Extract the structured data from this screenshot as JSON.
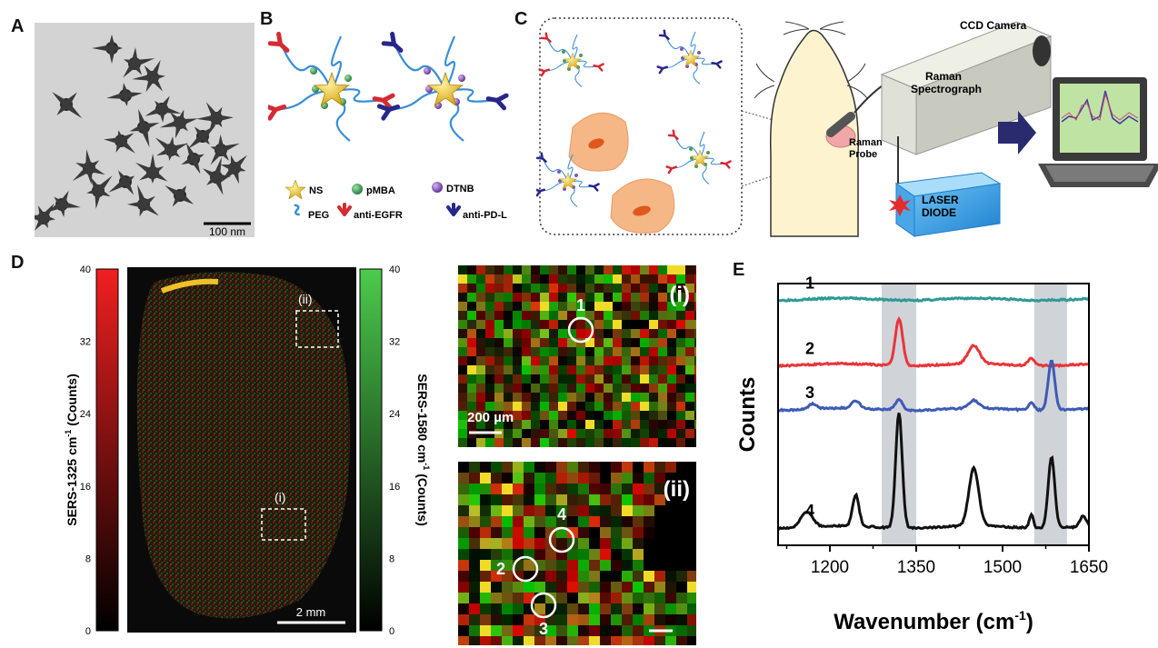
{
  "panels": {
    "A": {
      "letter": "A",
      "scalebar": "100 nm"
    },
    "B": {
      "letter": "B",
      "legend": [
        {
          "key": "ns",
          "label": "NS"
        },
        {
          "key": "pmba",
          "label": "pMBA"
        },
        {
          "key": "dtnb",
          "label": "DTNB"
        },
        {
          "key": "peg",
          "label": "PEG"
        },
        {
          "key": "egfr",
          "label": "anti-EGFR"
        },
        {
          "key": "pdl",
          "label": "anti-PD-L"
        }
      ]
    },
    "C": {
      "letter": "C",
      "labels": {
        "camera": "CCD Camera",
        "spectro_line1": "Raman",
        "spectro_line2": "Spectrograph",
        "probe_line1": "Raman",
        "probe_line2": "Probe",
        "laser_line1": "LASER",
        "laser_line2": "DIODE"
      }
    },
    "D": {
      "letter": "D",
      "left_bar_label_main": "SERS-1325 cm",
      "left_bar_label_sup": "-1",
      "left_bar_label_tail": " (Counts)",
      "right_bar_label_main": "SERS-1580 cm",
      "right_bar_label_sup": "-1",
      "right_bar_label_tail": " (Counts)",
      "ticks": [
        "0",
        "8",
        "16",
        "24",
        "32",
        "40"
      ],
      "roi_i": "(i)",
      "roi_ii": "(ii)",
      "scalebar": "2 mm",
      "inset_i": {
        "label": "(i)",
        "point": "1",
        "scalebar": "200 µm"
      },
      "inset_ii": {
        "label": "(ii)",
        "points": [
          "4",
          "2",
          "3"
        ]
      }
    },
    "E": {
      "letter": "E"
    }
  },
  "chart_data": {
    "type": "line",
    "title": "",
    "xlabel_main": "Wavenumber (cm",
    "xlabel_sup": "-1",
    "xlabel_tail": ")",
    "ylabel": "Counts",
    "xlim": [
      1110,
      1650
    ],
    "x_ticks": [
      "1200",
      "1350",
      "1500",
      "1650"
    ],
    "x_tick_values": [
      1200,
      1350,
      1500,
      1650
    ],
    "y_ticks": "none",
    "highlight_bands": [
      [
        1290,
        1350
      ],
      [
        1555,
        1612
      ]
    ],
    "series": [
      {
        "name": "1",
        "color": "#2e9a96",
        "baseline": 0.06,
        "peaks": []
      },
      {
        "name": "2",
        "color": "#e8353a",
        "baseline": 0.31,
        "peaks": [
          [
            1320,
            0.18,
            9
          ],
          [
            1450,
            0.07,
            14
          ],
          [
            1550,
            0.03,
            8
          ]
        ]
      },
      {
        "name": "3",
        "color": "#3d5bb5",
        "baseline": 0.48,
        "peaks": [
          [
            1170,
            0.02,
            10
          ],
          [
            1245,
            0.03,
            10
          ],
          [
            1320,
            0.04,
            9
          ],
          [
            1450,
            0.03,
            12
          ],
          [
            1550,
            0.03,
            7
          ],
          [
            1585,
            0.19,
            8
          ]
        ]
      },
      {
        "name": "4",
        "color": "#111111",
        "baseline": 0.93,
        "peaks": [
          [
            1160,
            0.06,
            14
          ],
          [
            1245,
            0.12,
            8
          ],
          [
            1320,
            0.44,
            8
          ],
          [
            1450,
            0.22,
            12
          ],
          [
            1550,
            0.05,
            5
          ],
          [
            1585,
            0.27,
            8
          ],
          [
            1640,
            0.04,
            8
          ]
        ]
      }
    ]
  }
}
